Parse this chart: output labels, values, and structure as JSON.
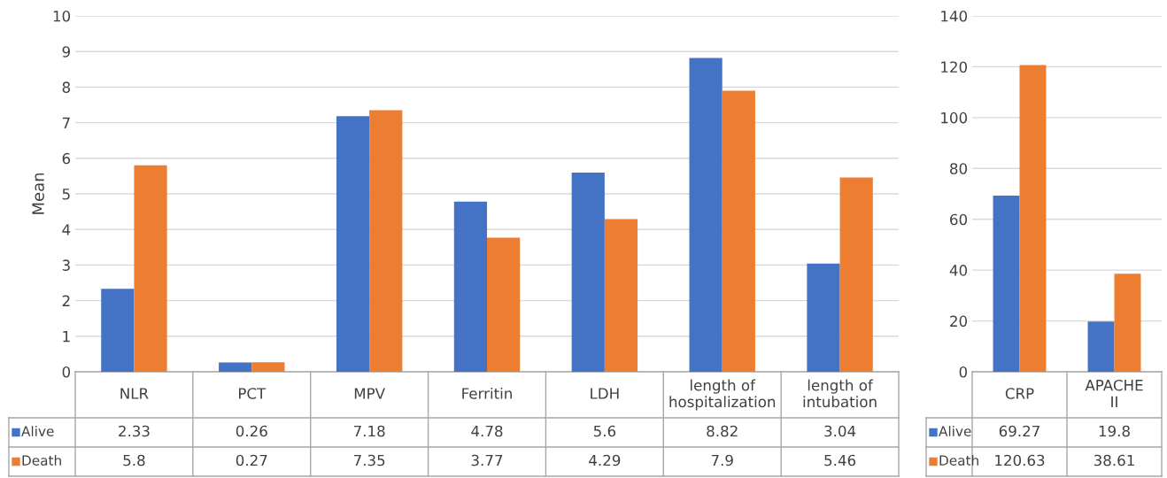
{
  "chart_data": [
    {
      "type": "bar",
      "ylabel": "Mean",
      "categories": [
        "NLR",
        "PCT",
        "MPV",
        "Ferritin",
        "LDH",
        "length of\nhospitalization",
        "length of\nintubation"
      ],
      "series": [
        {
          "name": "Alive",
          "color": "#4472c4",
          "values": [
            2.33,
            0.26,
            7.18,
            4.78,
            5.6,
            8.82,
            3.04
          ]
        },
        {
          "name": "Death",
          "color": "#ed7d31",
          "values": [
            5.8,
            0.27,
            7.35,
            3.77,
            4.29,
            7.9,
            5.46
          ]
        }
      ],
      "ylim": [
        0,
        10
      ],
      "yticks": [
        0,
        1,
        2,
        3,
        4,
        5,
        6,
        7,
        8,
        9,
        10
      ],
      "grid": "y",
      "data_labels": true,
      "legend": "bottom left"
    },
    {
      "type": "bar",
      "categories": [
        "CRP",
        "APACHE\nII"
      ],
      "series": [
        {
          "name": "Alive",
          "color": "#4472c4",
          "values": [
            69.27,
            19.8
          ]
        },
        {
          "name": "Death",
          "color": "#ed7d31",
          "values": [
            120.63,
            38.61
          ]
        }
      ],
      "ylim": [
        0,
        140
      ],
      "yticks": [
        0,
        20,
        40,
        60,
        80,
        100,
        120,
        140
      ],
      "grid": "y",
      "data_labels": true,
      "legend": "bottom left"
    }
  ]
}
